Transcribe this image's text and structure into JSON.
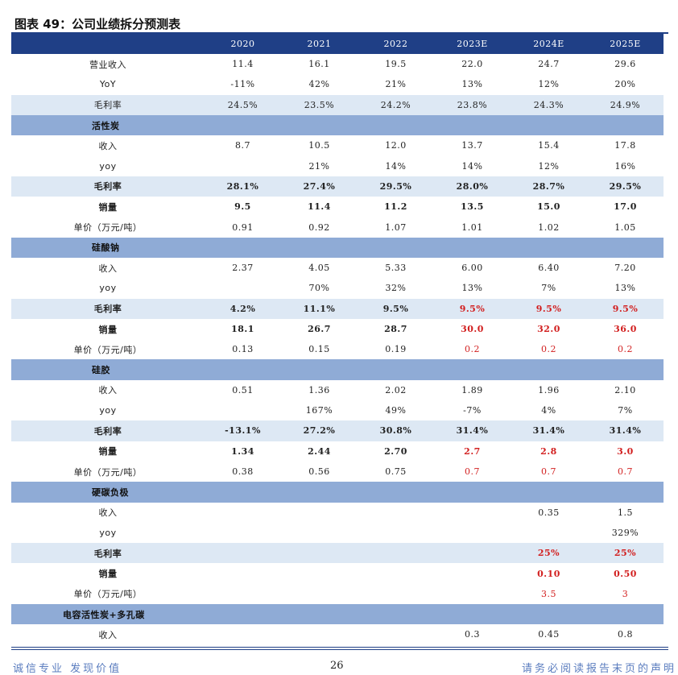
{
  "title": "图表 49：公司业绩拆分预测表",
  "header": [
    "",
    "2020",
    "2021",
    "2022",
    "2023E",
    "2024E",
    "2025E"
  ],
  "rows": [
    {
      "type": "data",
      "shade": false,
      "bold": false,
      "cells": [
        {
          "v": "营业收入"
        },
        {
          "v": "11.4"
        },
        {
          "v": "16.1"
        },
        {
          "v": "19.5"
        },
        {
          "v": "22.0"
        },
        {
          "v": "24.7"
        },
        {
          "v": "29.6"
        }
      ]
    },
    {
      "type": "data",
      "shade": false,
      "bold": false,
      "cells": [
        {
          "v": "YoY"
        },
        {
          "v": "-11%"
        },
        {
          "v": "42%"
        },
        {
          "v": "21%"
        },
        {
          "v": "13%"
        },
        {
          "v": "12%"
        },
        {
          "v": "20%"
        }
      ]
    },
    {
      "type": "data",
      "shade": true,
      "bold": false,
      "cells": [
        {
          "v": "毛利率"
        },
        {
          "v": "24.5%"
        },
        {
          "v": "23.5%"
        },
        {
          "v": "24.2%"
        },
        {
          "v": "23.8%"
        },
        {
          "v": "24.3%"
        },
        {
          "v": "24.9%"
        }
      ]
    },
    {
      "type": "section",
      "label": "活性炭"
    },
    {
      "type": "data",
      "shade": false,
      "bold": false,
      "cells": [
        {
          "v": "收入"
        },
        {
          "v": "8.7"
        },
        {
          "v": "10.5"
        },
        {
          "v": "12.0"
        },
        {
          "v": "13.7"
        },
        {
          "v": "15.4"
        },
        {
          "v": "17.8"
        }
      ]
    },
    {
      "type": "data",
      "shade": false,
      "bold": false,
      "cells": [
        {
          "v": "yoy"
        },
        {
          "v": ""
        },
        {
          "v": "21%"
        },
        {
          "v": "14%"
        },
        {
          "v": "14%"
        },
        {
          "v": "12%"
        },
        {
          "v": "16%"
        }
      ]
    },
    {
      "type": "data",
      "shade": true,
      "bold": true,
      "cells": [
        {
          "v": "毛利率"
        },
        {
          "v": "28.1%"
        },
        {
          "v": "27.4%"
        },
        {
          "v": "29.5%"
        },
        {
          "v": "28.0%"
        },
        {
          "v": "28.7%"
        },
        {
          "v": "29.5%"
        }
      ]
    },
    {
      "type": "data",
      "shade": false,
      "bold": true,
      "cells": [
        {
          "v": "销量"
        },
        {
          "v": "9.5"
        },
        {
          "v": "11.4"
        },
        {
          "v": "11.2"
        },
        {
          "v": "13.5"
        },
        {
          "v": "15.0"
        },
        {
          "v": "17.0"
        }
      ]
    },
    {
      "type": "data",
      "shade": false,
      "bold": false,
      "cells": [
        {
          "v": "单价（万元/吨）"
        },
        {
          "v": "0.91"
        },
        {
          "v": "0.92"
        },
        {
          "v": "1.07"
        },
        {
          "v": "1.01"
        },
        {
          "v": "1.02"
        },
        {
          "v": "1.05"
        }
      ]
    },
    {
      "type": "section",
      "label": "硅酸钠"
    },
    {
      "type": "data",
      "shade": false,
      "bold": false,
      "cells": [
        {
          "v": "收入"
        },
        {
          "v": "2.37"
        },
        {
          "v": "4.05"
        },
        {
          "v": "5.33"
        },
        {
          "v": "6.00"
        },
        {
          "v": "6.40"
        },
        {
          "v": "7.20"
        }
      ]
    },
    {
      "type": "data",
      "shade": false,
      "bold": false,
      "cells": [
        {
          "v": "yoy"
        },
        {
          "v": ""
        },
        {
          "v": "70%"
        },
        {
          "v": "32%"
        },
        {
          "v": "13%"
        },
        {
          "v": "7%"
        },
        {
          "v": "13%"
        }
      ]
    },
    {
      "type": "data",
      "shade": true,
      "bold": true,
      "cells": [
        {
          "v": "毛利率"
        },
        {
          "v": "4.2%"
        },
        {
          "v": "11.1%"
        },
        {
          "v": "9.5%"
        },
        {
          "v": "9.5%",
          "red": true
        },
        {
          "v": "9.5%",
          "red": true
        },
        {
          "v": "9.5%",
          "red": true
        }
      ]
    },
    {
      "type": "data",
      "shade": false,
      "bold": true,
      "cells": [
        {
          "v": "销量"
        },
        {
          "v": "18.1"
        },
        {
          "v": "26.7"
        },
        {
          "v": "28.7"
        },
        {
          "v": "30.0",
          "red": true
        },
        {
          "v": "32.0",
          "red": true
        },
        {
          "v": "36.0",
          "red": true
        }
      ]
    },
    {
      "type": "data",
      "shade": false,
      "bold": false,
      "cells": [
        {
          "v": "单价（万元/吨）"
        },
        {
          "v": "0.13"
        },
        {
          "v": "0.15"
        },
        {
          "v": "0.19"
        },
        {
          "v": "0.2",
          "red": true
        },
        {
          "v": "0.2",
          "red": true
        },
        {
          "v": "0.2",
          "red": true
        }
      ]
    },
    {
      "type": "section",
      "label": "硅胶"
    },
    {
      "type": "data",
      "shade": false,
      "bold": false,
      "cells": [
        {
          "v": "收入"
        },
        {
          "v": "0.51"
        },
        {
          "v": "1.36"
        },
        {
          "v": "2.02"
        },
        {
          "v": "1.89"
        },
        {
          "v": "1.96"
        },
        {
          "v": "2.10"
        }
      ]
    },
    {
      "type": "data",
      "shade": false,
      "bold": false,
      "cells": [
        {
          "v": "yoy"
        },
        {
          "v": ""
        },
        {
          "v": "167%"
        },
        {
          "v": "49%"
        },
        {
          "v": "-7%"
        },
        {
          "v": "4%"
        },
        {
          "v": "7%"
        }
      ]
    },
    {
      "type": "data",
      "shade": true,
      "bold": true,
      "cells": [
        {
          "v": "毛利率"
        },
        {
          "v": "-13.1%"
        },
        {
          "v": "27.2%"
        },
        {
          "v": "30.8%"
        },
        {
          "v": "31.4%"
        },
        {
          "v": "31.4%"
        },
        {
          "v": "31.4%"
        }
      ]
    },
    {
      "type": "data",
      "shade": false,
      "bold": true,
      "cells": [
        {
          "v": "销量"
        },
        {
          "v": "1.34"
        },
        {
          "v": "2.44"
        },
        {
          "v": "2.70"
        },
        {
          "v": "2.7",
          "red": true
        },
        {
          "v": "2.8",
          "red": true
        },
        {
          "v": "3.0",
          "red": true
        }
      ]
    },
    {
      "type": "data",
      "shade": false,
      "bold": false,
      "cells": [
        {
          "v": "单价（万元/吨）"
        },
        {
          "v": "0.38"
        },
        {
          "v": "0.56"
        },
        {
          "v": "0.75"
        },
        {
          "v": "0.7",
          "red": true
        },
        {
          "v": "0.7",
          "red": true
        },
        {
          "v": "0.7",
          "red": true
        }
      ]
    },
    {
      "type": "section",
      "label": "硬碳负极"
    },
    {
      "type": "data",
      "shade": false,
      "bold": false,
      "cells": [
        {
          "v": "收入"
        },
        {
          "v": ""
        },
        {
          "v": ""
        },
        {
          "v": ""
        },
        {
          "v": ""
        },
        {
          "v": "0.35"
        },
        {
          "v": "1.5"
        }
      ]
    },
    {
      "type": "data",
      "shade": false,
      "bold": false,
      "cells": [
        {
          "v": "yoy"
        },
        {
          "v": ""
        },
        {
          "v": ""
        },
        {
          "v": ""
        },
        {
          "v": ""
        },
        {
          "v": ""
        },
        {
          "v": "329%"
        }
      ]
    },
    {
      "type": "data",
      "shade": true,
      "bold": true,
      "cells": [
        {
          "v": "毛利率"
        },
        {
          "v": ""
        },
        {
          "v": ""
        },
        {
          "v": ""
        },
        {
          "v": ""
        },
        {
          "v": "25%",
          "red": true
        },
        {
          "v": "25%",
          "red": true
        }
      ]
    },
    {
      "type": "data",
      "shade": false,
      "bold": true,
      "cells": [
        {
          "v": "销量"
        },
        {
          "v": ""
        },
        {
          "v": ""
        },
        {
          "v": ""
        },
        {
          "v": ""
        },
        {
          "v": "0.10",
          "red": true
        },
        {
          "v": "0.50",
          "red": true
        }
      ]
    },
    {
      "type": "data",
      "shade": false,
      "bold": false,
      "cells": [
        {
          "v": "单价（万元/吨）"
        },
        {
          "v": ""
        },
        {
          "v": ""
        },
        {
          "v": ""
        },
        {
          "v": ""
        },
        {
          "v": "3.5",
          "red": true
        },
        {
          "v": "3",
          "red": true
        }
      ]
    },
    {
      "type": "section",
      "label": "电容活性炭+多孔碳",
      "wide": true
    },
    {
      "type": "data",
      "shade": false,
      "bold": false,
      "cells": [
        {
          "v": "收入"
        },
        {
          "v": ""
        },
        {
          "v": ""
        },
        {
          "v": ""
        },
        {
          "v": "0.3"
        },
        {
          "v": "0.45"
        },
        {
          "v": "0.8"
        }
      ]
    }
  ],
  "footer": {
    "left": "诚信专业  发现价值",
    "page": "26",
    "right": "请务必阅读报告末页的声明"
  }
}
